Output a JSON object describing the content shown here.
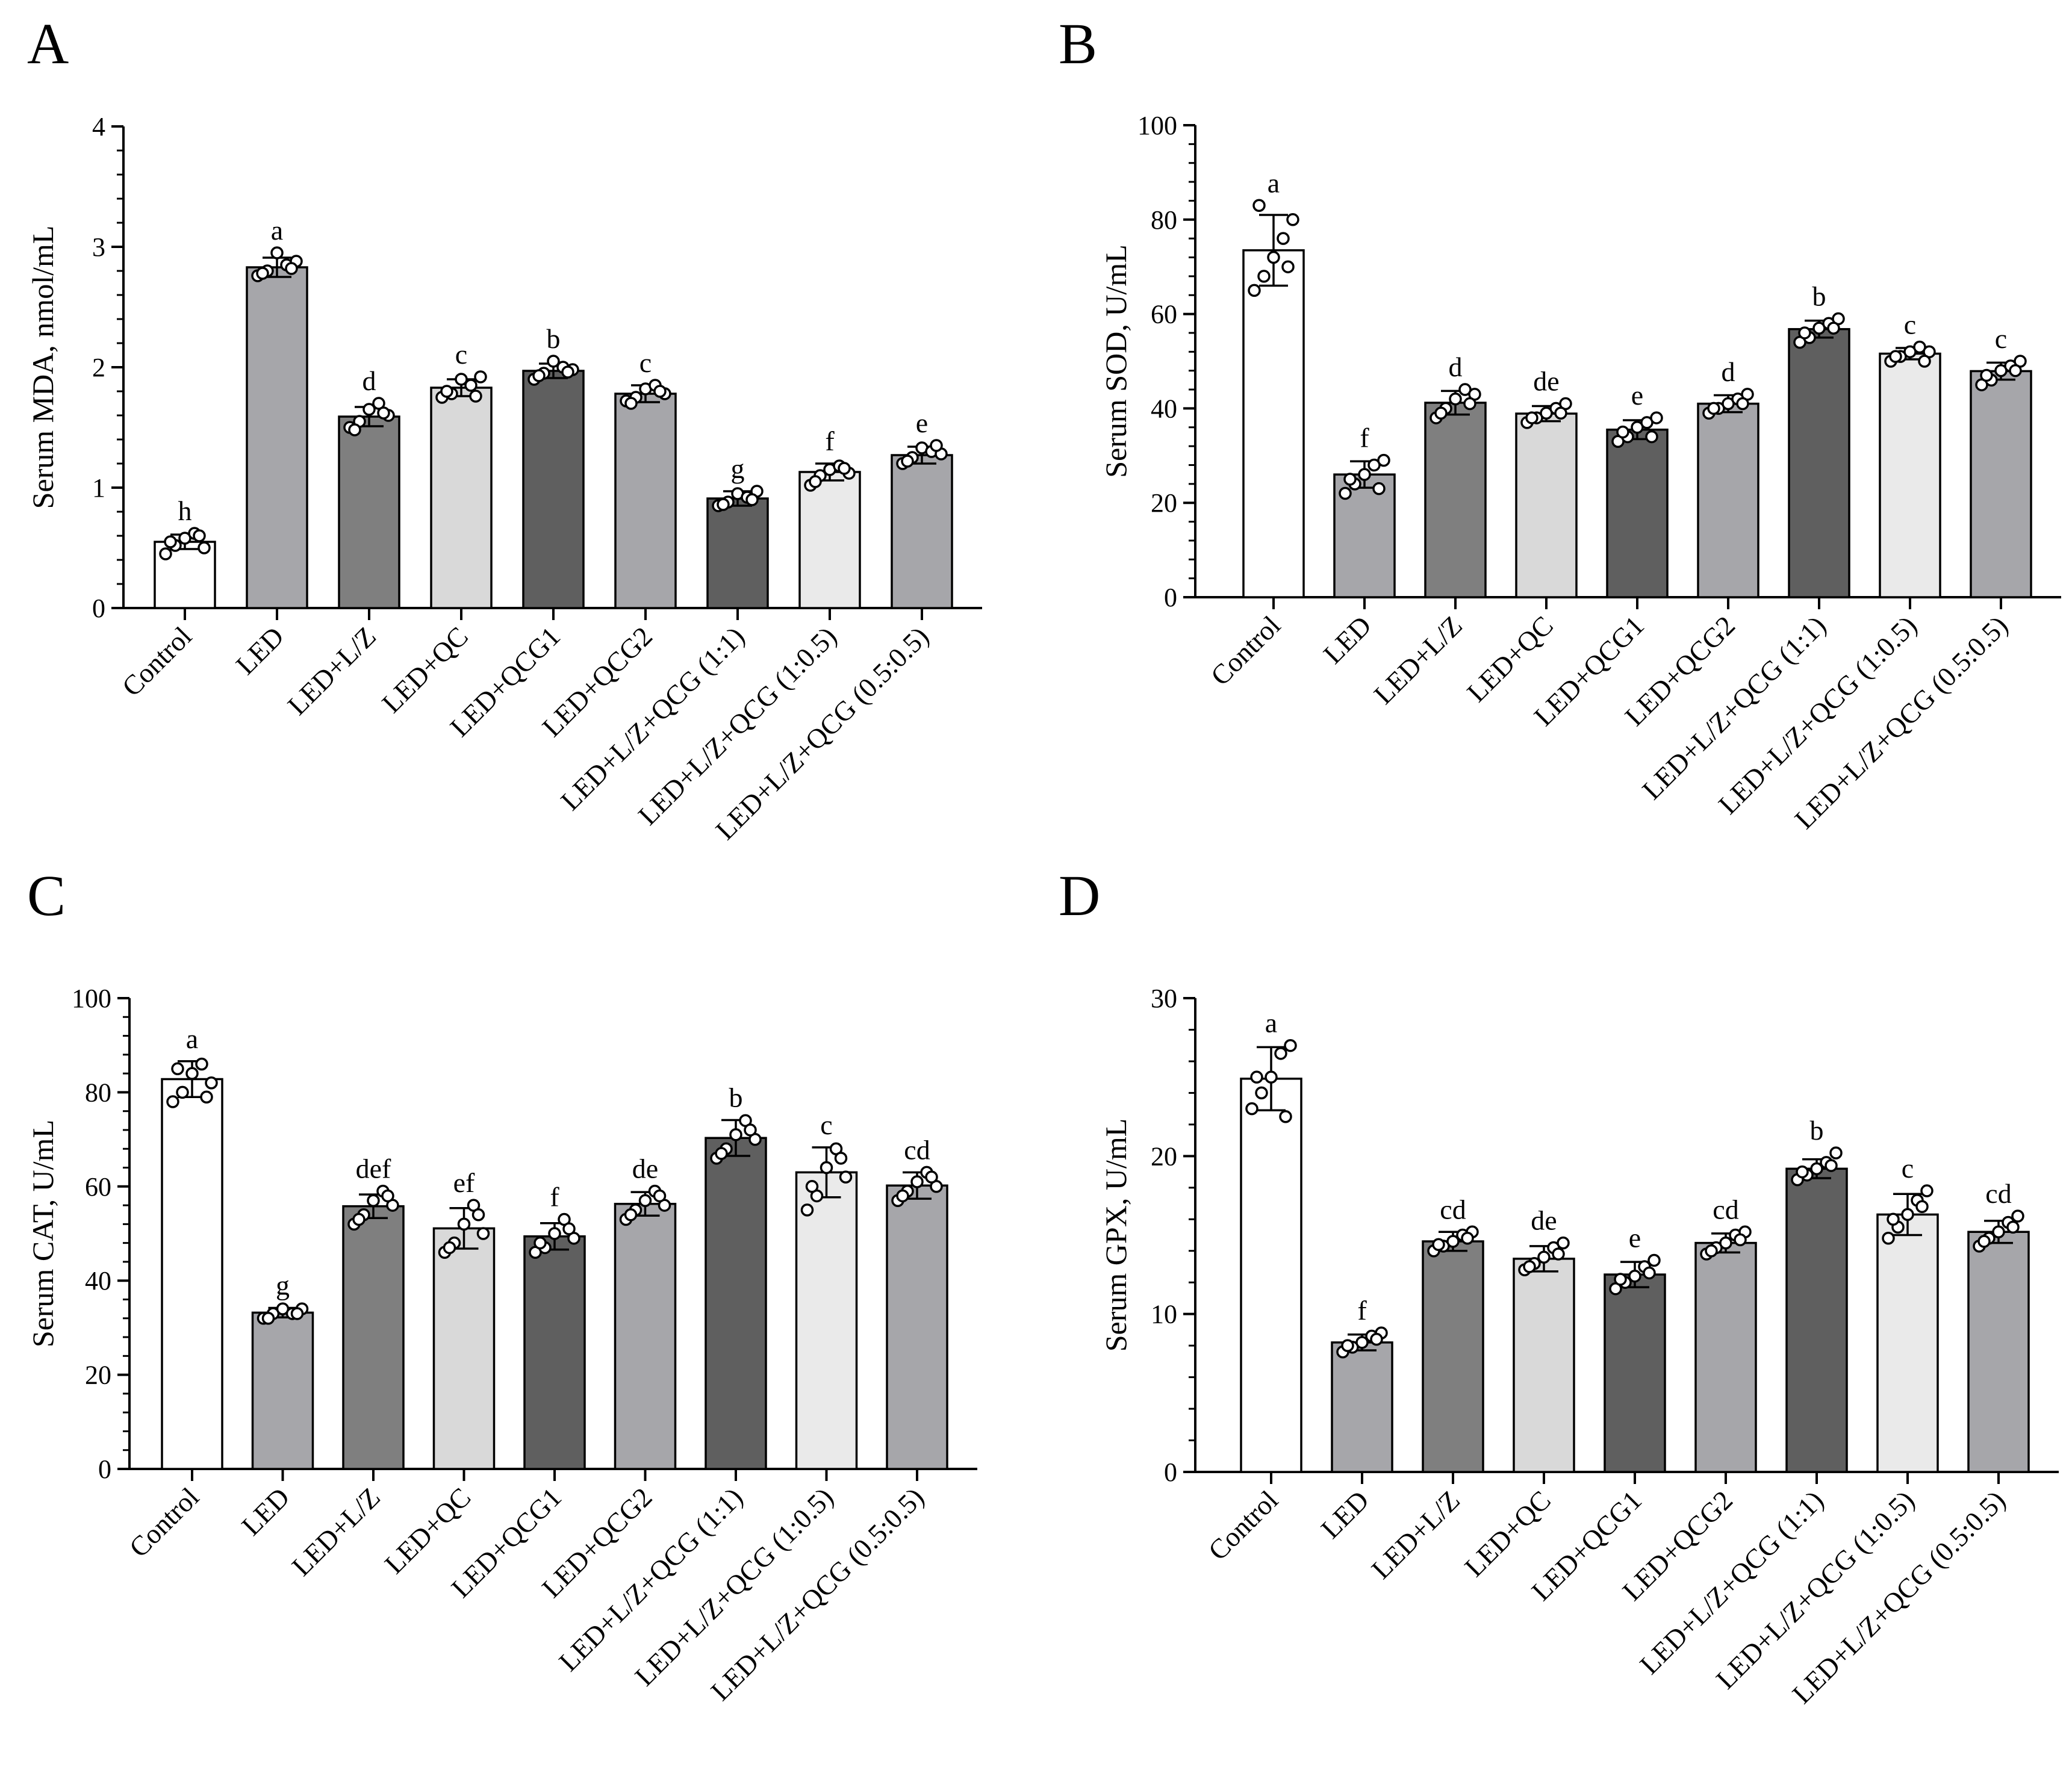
{
  "chart_data": [
    {
      "type": "bar",
      "panel_label": "A",
      "ylabel": "Serum MDA, nmol/mL",
      "ylim": [
        0,
        4
      ],
      "yticks": [
        0,
        1,
        2,
        3,
        4
      ],
      "categories": [
        "Control",
        "LED",
        "LED+L/Z",
        "LED+QC",
        "LED+QCG1",
        "LED+QCG2",
        "LED+L/Z+QCG (1:1)",
        "LED+L/Z+QCG (1:0.5)",
        "LED+L/Z+QCG (0.5:0.5)"
      ],
      "values": [
        0.55,
        2.83,
        1.59,
        1.83,
        1.97,
        1.78,
        0.91,
        1.13,
        1.27
      ],
      "errors": [
        0.06,
        0.08,
        0.08,
        0.07,
        0.06,
        0.07,
        0.06,
        0.07,
        0.07
      ],
      "significance": [
        "h",
        "a",
        "d",
        "c",
        "b",
        "c",
        "g",
        "f",
        "e"
      ],
      "points": [
        [
          0.45,
          0.52,
          0.58,
          0.62,
          0.5,
          0.55,
          0.6
        ],
        [
          2.76,
          2.8,
          2.95,
          2.85,
          2.88,
          2.78,
          2.82
        ],
        [
          1.5,
          1.55,
          1.65,
          1.7,
          1.6,
          1.48,
          1.62
        ],
        [
          1.75,
          1.78,
          1.9,
          1.85,
          1.92,
          1.8,
          1.76
        ],
        [
          1.9,
          1.95,
          2.05,
          2.0,
          1.98,
          1.93,
          1.96
        ],
        [
          1.72,
          1.75,
          1.82,
          1.85,
          1.78,
          1.7,
          1.8
        ],
        [
          0.85,
          0.88,
          0.95,
          0.92,
          0.97,
          0.86,
          0.9
        ],
        [
          1.02,
          1.1,
          1.15,
          1.18,
          1.12,
          1.05,
          1.16
        ],
        [
          1.2,
          1.25,
          1.33,
          1.3,
          1.28,
          1.22,
          1.35
        ]
      ],
      "fills": [
        "#ffffff",
        "#a6a6aa",
        "#7f7f7f",
        "#d9d9d9",
        "#5f5f5f",
        "#a6a6aa",
        "#5f5f5f",
        "#eaeaea",
        "#a6a6aa"
      ]
    },
    {
      "type": "bar",
      "panel_label": "B",
      "ylabel": "Serum SOD, U/mL",
      "ylim": [
        0,
        100
      ],
      "yticks": [
        0,
        20,
        40,
        60,
        80,
        100
      ],
      "categories": [
        "Control",
        "LED",
        "LED+L/Z",
        "LED+QC",
        "LED+QCG1",
        "LED+QCG2",
        "LED+L/Z+QCG (1:1)",
        "LED+L/Z+QCG (1:0.5)",
        "LED+L/Z+QCG (0.5:0.5)"
      ],
      "values": [
        73.5,
        26.0,
        41.2,
        38.9,
        35.5,
        41.0,
        56.8,
        51.6,
        47.9
      ],
      "errors": [
        7.5,
        2.8,
        2.5,
        1.6,
        2.0,
        1.8,
        1.8,
        1.2,
        1.8
      ],
      "significance": [
        "a",
        "f",
        "d",
        "de",
        "e",
        "d",
        "b",
        "c",
        "c"
      ],
      "points": [
        [
          65,
          68,
          72,
          76,
          80,
          83,
          70
        ],
        [
          22,
          24,
          26,
          28,
          29,
          25,
          23
        ],
        [
          38,
          40,
          42,
          44,
          43,
          39,
          41
        ],
        [
          37,
          38,
          39,
          40,
          41,
          38,
          39
        ],
        [
          33,
          34,
          36,
          37,
          38,
          35,
          34
        ],
        [
          39,
          40,
          41,
          42,
          43,
          40,
          41
        ],
        [
          54,
          55,
          57,
          58,
          59,
          56,
          57
        ],
        [
          50,
          51,
          52,
          53,
          52,
          51,
          50
        ],
        [
          45,
          46,
          48,
          49,
          50,
          47,
          48
        ]
      ],
      "fills": [
        "#ffffff",
        "#a6a6aa",
        "#7f7f7f",
        "#d9d9d9",
        "#5f5f5f",
        "#a6a6aa",
        "#5f5f5f",
        "#eaeaea",
        "#a6a6aa"
      ]
    },
    {
      "type": "bar",
      "panel_label": "C",
      "ylabel": "Serum CAT, U/mL",
      "ylim": [
        0,
        100
      ],
      "yticks": [
        0,
        20,
        40,
        60,
        80,
        100
      ],
      "categories": [
        "Control",
        "LED",
        "LED+L/Z",
        "LED+QC",
        "LED+QCG1",
        "LED+QCG2",
        "LED+L/Z+QCG (1:1)",
        "LED+L/Z+QCG (1:0.5)",
        "LED+L/Z+QCG (0.5:0.5)"
      ],
      "values": [
        82.8,
        33.2,
        55.8,
        51.1,
        49.4,
        56.3,
        70.3,
        63.0,
        60.2
      ],
      "errors": [
        3.8,
        1.0,
        2.5,
        4.3,
        2.8,
        2.5,
        3.8,
        5.3,
        2.8
      ],
      "significance": [
        "a",
        "g",
        "def",
        "ef",
        "f",
        "de",
        "b",
        "c",
        "cd"
      ],
      "points": [
        [
          78,
          80,
          84,
          86,
          82,
          85,
          79
        ],
        [
          32,
          33,
          34,
          33,
          34,
          32,
          33
        ],
        [
          52,
          54,
          57,
          59,
          56,
          53,
          58
        ],
        [
          46,
          48,
          52,
          56,
          50,
          47,
          54
        ],
        [
          46,
          47,
          50,
          53,
          49,
          48,
          51
        ],
        [
          53,
          55,
          57,
          59,
          56,
          54,
          58
        ],
        [
          66,
          68,
          71,
          74,
          70,
          67,
          72
        ],
        [
          55,
          58,
          64,
          68,
          62,
          60,
          66
        ],
        [
          57,
          59,
          61,
          63,
          60,
          58,
          62
        ]
      ],
      "fills": [
        "#ffffff",
        "#a6a6aa",
        "#7f7f7f",
        "#d9d9d9",
        "#5f5f5f",
        "#a6a6aa",
        "#5f5f5f",
        "#eaeaea",
        "#a6a6aa"
      ]
    },
    {
      "type": "bar",
      "panel_label": "D",
      "ylabel": "Serum  GPX, U/mL",
      "ylim": [
        0,
        30
      ],
      "yticks": [
        0,
        10,
        20,
        30
      ],
      "categories": [
        "Control",
        "LED",
        "LED+L/Z",
        "LED+QC",
        "LED+QCG1",
        "LED+QCG2",
        "LED+L/Z+QCG (1:1)",
        "LED+L/Z+QCG (1:0.5)",
        "LED+L/Z+QCG (0.5:0.5)"
      ],
      "values": [
        24.9,
        8.2,
        14.6,
        13.5,
        12.5,
        14.5,
        19.2,
        16.3,
        15.2
      ],
      "errors": [
        2.0,
        0.5,
        0.6,
        0.8,
        0.8,
        0.6,
        0.6,
        1.3,
        0.7
      ],
      "significance": [
        "a",
        "f",
        "cd",
        "de",
        "e",
        "cd",
        "b",
        "c",
        "cd"
      ],
      "points": [
        [
          23,
          24,
          25,
          26.5,
          27,
          25,
          22.5
        ],
        [
          7.6,
          7.9,
          8.2,
          8.6,
          8.8,
          8.0,
          8.4
        ],
        [
          14.0,
          14.3,
          14.6,
          15.0,
          15.2,
          14.4,
          14.8
        ],
        [
          12.8,
          13.2,
          13.6,
          14.2,
          14.5,
          13.0,
          13.8
        ],
        [
          11.6,
          12.0,
          12.4,
          13.0,
          13.4,
          12.2,
          12.6
        ],
        [
          13.8,
          14.2,
          14.5,
          15.0,
          15.2,
          14.0,
          14.7
        ],
        [
          18.5,
          18.8,
          19.2,
          19.6,
          20.2,
          19.0,
          19.4
        ],
        [
          14.8,
          15.5,
          16.3,
          17.2,
          17.8,
          16.0,
          16.8
        ],
        [
          14.3,
          14.8,
          15.2,
          15.8,
          16.2,
          14.6,
          15.5
        ]
      ],
      "fills": [
        "#ffffff",
        "#a6a6aa",
        "#7f7f7f",
        "#d9d9d9",
        "#5f5f5f",
        "#a6a6aa",
        "#5f5f5f",
        "#eaeaea",
        "#a6a6aa"
      ]
    }
  ]
}
